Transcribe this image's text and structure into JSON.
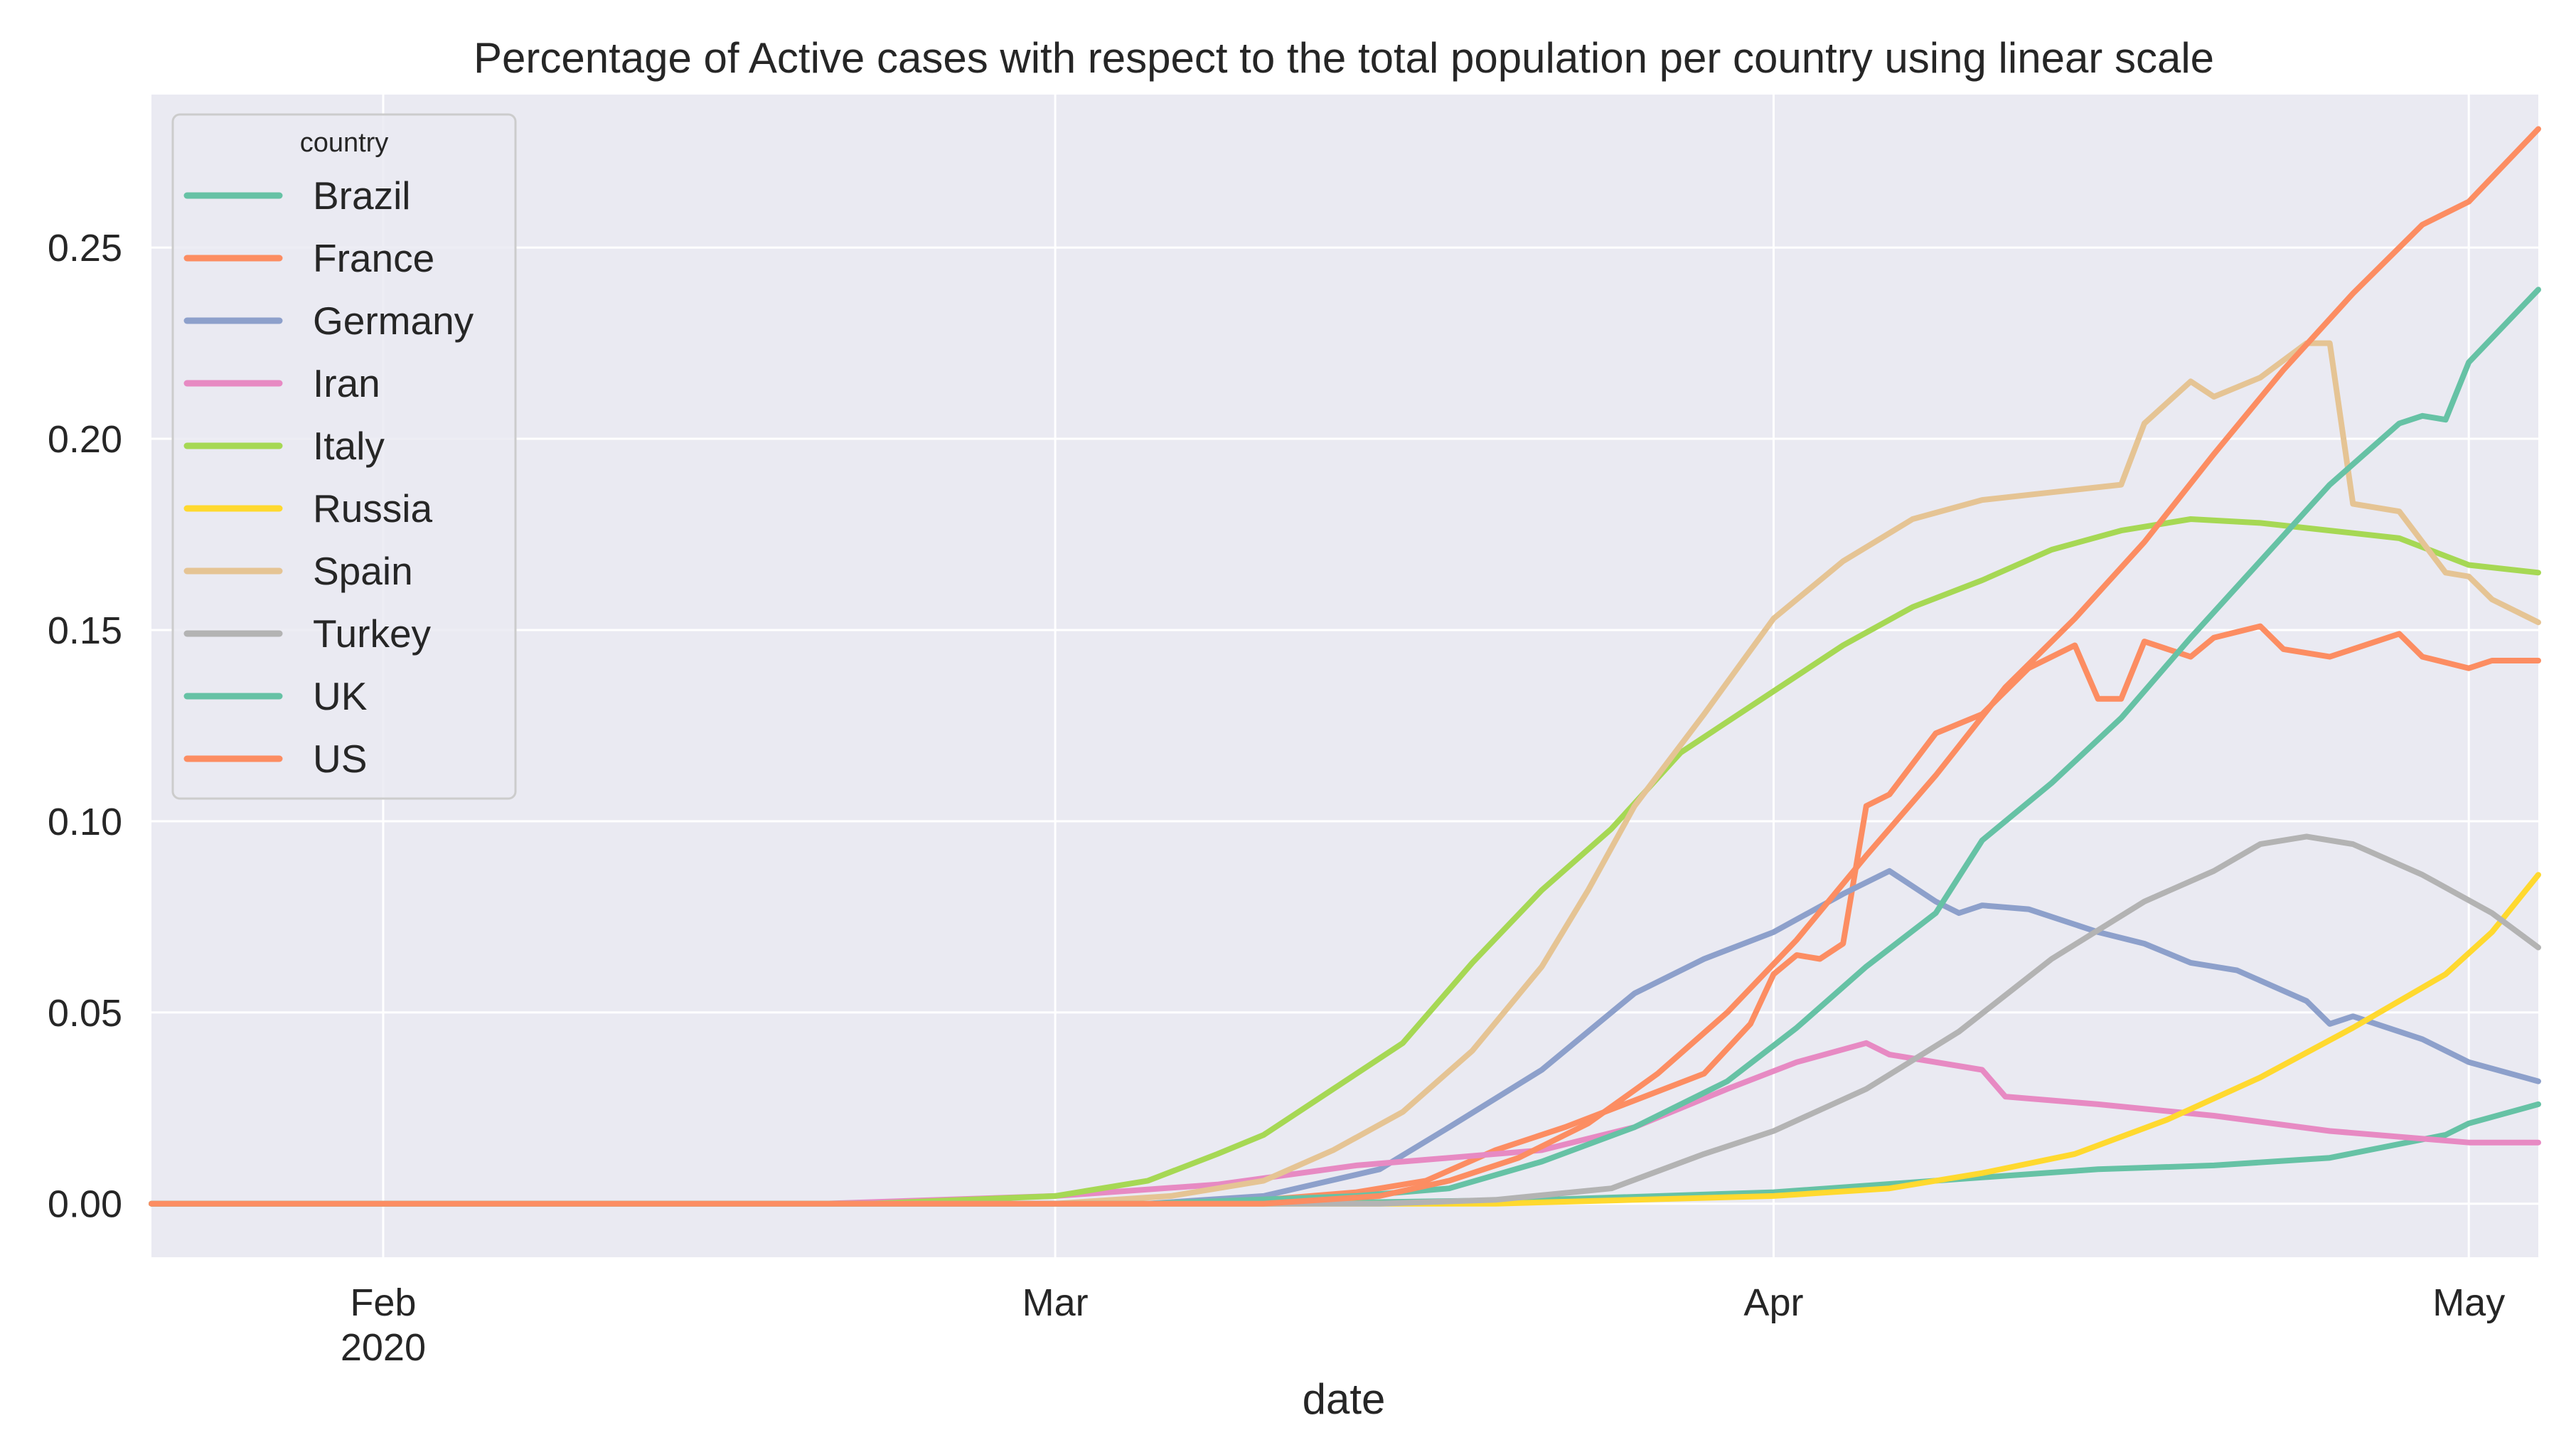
{
  "chart_data": {
    "type": "line",
    "title": "Percentage of Active cases with respect to the total population per country using linear scale",
    "xlabel": "date",
    "ylabel": "",
    "x_range": [
      "2020-01-22",
      "2020-05-04"
    ],
    "ylim": [
      -0.014,
      0.29
    ],
    "grid": true,
    "legend_position": "top-left",
    "legend_title": "country",
    "y_ticks": [
      {
        "value": 0.0,
        "label": "0.00"
      },
      {
        "value": 0.05,
        "label": "0.05"
      },
      {
        "value": 0.1,
        "label": "0.10"
      },
      {
        "value": 0.15,
        "label": "0.15"
      },
      {
        "value": 0.2,
        "label": "0.20"
      },
      {
        "value": 0.25,
        "label": "0.25"
      }
    ],
    "x_ticks": [
      {
        "date": "2020-02-01",
        "label": "Feb",
        "sublabel": "2020"
      },
      {
        "date": "2020-03-01",
        "label": "Mar",
        "sublabel": ""
      },
      {
        "date": "2020-04-01",
        "label": "Apr",
        "sublabel": ""
      },
      {
        "date": "2020-05-01",
        "label": "May",
        "sublabel": ""
      }
    ],
    "series": [
      {
        "name": "Brazil",
        "color": "#66c2a5",
        "points": [
          [
            "2020-01-22",
            0
          ],
          [
            "2020-03-10",
            0
          ],
          [
            "2020-03-22",
            0.001
          ],
          [
            "2020-04-01",
            0.003
          ],
          [
            "2020-04-08",
            0.006
          ],
          [
            "2020-04-15",
            0.009
          ],
          [
            "2020-04-20",
            0.01
          ],
          [
            "2020-04-25",
            0.012
          ],
          [
            "2020-04-30",
            0.018
          ],
          [
            "2020-05-01",
            0.021
          ],
          [
            "2020-05-04",
            0.026
          ]
        ]
      },
      {
        "name": "France",
        "color": "#fc8d62",
        "points": [
          [
            "2020-01-22",
            0
          ],
          [
            "2020-03-05",
            0
          ],
          [
            "2020-03-10",
            0.001
          ],
          [
            "2020-03-14",
            0.003
          ],
          [
            "2020-03-17",
            0.006
          ],
          [
            "2020-03-20",
            0.014
          ],
          [
            "2020-03-23",
            0.02
          ],
          [
            "2020-03-26",
            0.027
          ],
          [
            "2020-03-29",
            0.034
          ],
          [
            "2020-03-31",
            0.047
          ],
          [
            "2020-04-01",
            0.06
          ],
          [
            "2020-04-02",
            0.065
          ],
          [
            "2020-04-03",
            0.064
          ],
          [
            "2020-04-04",
            0.068
          ],
          [
            "2020-04-05",
            0.104
          ],
          [
            "2020-04-06",
            0.107
          ],
          [
            "2020-04-08",
            0.123
          ],
          [
            "2020-04-10",
            0.128
          ],
          [
            "2020-04-12",
            0.14
          ],
          [
            "2020-04-14",
            0.146
          ],
          [
            "2020-04-15",
            0.132
          ],
          [
            "2020-04-16",
            0.132
          ],
          [
            "2020-04-17",
            0.147
          ],
          [
            "2020-04-19",
            0.143
          ],
          [
            "2020-04-20",
            0.148
          ],
          [
            "2020-04-22",
            0.151
          ],
          [
            "2020-04-23",
            0.145
          ],
          [
            "2020-04-25",
            0.143
          ],
          [
            "2020-04-28",
            0.149
          ],
          [
            "2020-04-29",
            0.143
          ],
          [
            "2020-05-01",
            0.14
          ],
          [
            "2020-05-02",
            0.142
          ],
          [
            "2020-05-04",
            0.142
          ]
        ]
      },
      {
        "name": "Germany",
        "color": "#8da0cb",
        "points": [
          [
            "2020-01-22",
            0
          ],
          [
            "2020-03-05",
            0
          ],
          [
            "2020-03-10",
            0.002
          ],
          [
            "2020-03-15",
            0.009
          ],
          [
            "2020-03-18",
            0.02
          ],
          [
            "2020-03-22",
            0.035
          ],
          [
            "2020-03-26",
            0.055
          ],
          [
            "2020-03-29",
            0.064
          ],
          [
            "2020-04-01",
            0.071
          ],
          [
            "2020-04-04",
            0.081
          ],
          [
            "2020-04-06",
            0.087
          ],
          [
            "2020-04-08",
            0.079
          ],
          [
            "2020-04-09",
            0.076
          ],
          [
            "2020-04-10",
            0.078
          ],
          [
            "2020-04-12",
            0.077
          ],
          [
            "2020-04-15",
            0.071
          ],
          [
            "2020-04-17",
            0.068
          ],
          [
            "2020-04-19",
            0.063
          ],
          [
            "2020-04-21",
            0.061
          ],
          [
            "2020-04-24",
            0.053
          ],
          [
            "2020-04-25",
            0.047
          ],
          [
            "2020-04-26",
            0.049
          ],
          [
            "2020-04-29",
            0.043
          ],
          [
            "2020-05-01",
            0.037
          ],
          [
            "2020-05-04",
            0.032
          ]
        ]
      },
      {
        "name": "Iran",
        "color": "#e78ac3",
        "points": [
          [
            "2020-01-22",
            0
          ],
          [
            "2020-02-20",
            0
          ],
          [
            "2020-03-01",
            0.002
          ],
          [
            "2020-03-08",
            0.005
          ],
          [
            "2020-03-14",
            0.01
          ],
          [
            "2020-03-18",
            0.012
          ],
          [
            "2020-03-22",
            0.014
          ],
          [
            "2020-03-26",
            0.02
          ],
          [
            "2020-03-30",
            0.03
          ],
          [
            "2020-04-02",
            0.037
          ],
          [
            "2020-04-05",
            0.042
          ],
          [
            "2020-04-06",
            0.039
          ],
          [
            "2020-04-10",
            0.035
          ],
          [
            "2020-04-11",
            0.028
          ],
          [
            "2020-04-15",
            0.026
          ],
          [
            "2020-04-20",
            0.023
          ],
          [
            "2020-04-25",
            0.019
          ],
          [
            "2020-05-01",
            0.016
          ],
          [
            "2020-05-04",
            0.016
          ]
        ]
      },
      {
        "name": "Italy",
        "color": "#a6d854",
        "points": [
          [
            "2020-01-22",
            0
          ],
          [
            "2020-02-22",
            0
          ],
          [
            "2020-03-01",
            0.002
          ],
          [
            "2020-03-05",
            0.006
          ],
          [
            "2020-03-08",
            0.013
          ],
          [
            "2020-03-10",
            0.018
          ],
          [
            "2020-03-13",
            0.03
          ],
          [
            "2020-03-16",
            0.042
          ],
          [
            "2020-03-19",
            0.063
          ],
          [
            "2020-03-22",
            0.082
          ],
          [
            "2020-03-25",
            0.098
          ],
          [
            "2020-03-28",
            0.118
          ],
          [
            "2020-04-01",
            0.134
          ],
          [
            "2020-04-04",
            0.146
          ],
          [
            "2020-04-07",
            0.156
          ],
          [
            "2020-04-10",
            0.163
          ],
          [
            "2020-04-13",
            0.171
          ],
          [
            "2020-04-16",
            0.176
          ],
          [
            "2020-04-19",
            0.179
          ],
          [
            "2020-04-22",
            0.178
          ],
          [
            "2020-04-25",
            0.176
          ],
          [
            "2020-04-28",
            0.174
          ],
          [
            "2020-05-01",
            0.167
          ],
          [
            "2020-05-04",
            0.165
          ]
        ]
      },
      {
        "name": "Russia",
        "color": "#ffd92f",
        "points": [
          [
            "2020-01-22",
            0
          ],
          [
            "2020-03-20",
            0
          ],
          [
            "2020-04-01",
            0.002
          ],
          [
            "2020-04-06",
            0.004
          ],
          [
            "2020-04-10",
            0.008
          ],
          [
            "2020-04-14",
            0.013
          ],
          [
            "2020-04-18",
            0.022
          ],
          [
            "2020-04-22",
            0.033
          ],
          [
            "2020-04-26",
            0.046
          ],
          [
            "2020-04-30",
            0.06
          ],
          [
            "2020-05-02",
            0.071
          ],
          [
            "2020-05-04",
            0.086
          ]
        ]
      },
      {
        "name": "Spain",
        "color": "#e5c494",
        "points": [
          [
            "2020-01-22",
            0
          ],
          [
            "2020-03-01",
            0
          ],
          [
            "2020-03-06",
            0.002
          ],
          [
            "2020-03-10",
            0.006
          ],
          [
            "2020-03-13",
            0.014
          ],
          [
            "2020-03-16",
            0.024
          ],
          [
            "2020-03-19",
            0.04
          ],
          [
            "2020-03-22",
            0.062
          ],
          [
            "2020-03-24",
            0.082
          ],
          [
            "2020-03-26",
            0.104
          ],
          [
            "2020-03-29",
            0.128
          ],
          [
            "2020-04-01",
            0.153
          ],
          [
            "2020-04-04",
            0.168
          ],
          [
            "2020-04-07",
            0.179
          ],
          [
            "2020-04-10",
            0.184
          ],
          [
            "2020-04-13",
            0.186
          ],
          [
            "2020-04-16",
            0.188
          ],
          [
            "2020-04-17",
            0.204
          ],
          [
            "2020-04-19",
            0.215
          ],
          [
            "2020-04-20",
            0.211
          ],
          [
            "2020-04-22",
            0.216
          ],
          [
            "2020-04-24",
            0.225
          ],
          [
            "2020-04-25",
            0.225
          ],
          [
            "2020-04-26",
            0.183
          ],
          [
            "2020-04-28",
            0.181
          ],
          [
            "2020-04-30",
            0.165
          ],
          [
            "2020-05-01",
            0.164
          ],
          [
            "2020-05-02",
            0.158
          ],
          [
            "2020-05-04",
            0.152
          ]
        ]
      },
      {
        "name": "Turkey",
        "color": "#b3b3b3",
        "points": [
          [
            "2020-01-22",
            0
          ],
          [
            "2020-03-15",
            0
          ],
          [
            "2020-03-20",
            0.001
          ],
          [
            "2020-03-25",
            0.004
          ],
          [
            "2020-03-29",
            0.013
          ],
          [
            "2020-04-01",
            0.019
          ],
          [
            "2020-04-05",
            0.03
          ],
          [
            "2020-04-09",
            0.045
          ],
          [
            "2020-04-13",
            0.064
          ],
          [
            "2020-04-17",
            0.079
          ],
          [
            "2020-04-20",
            0.087
          ],
          [
            "2020-04-22",
            0.094
          ],
          [
            "2020-04-24",
            0.096
          ],
          [
            "2020-04-26",
            0.094
          ],
          [
            "2020-04-29",
            0.086
          ],
          [
            "2020-05-02",
            0.076
          ],
          [
            "2020-05-04",
            0.067
          ]
        ]
      },
      {
        "name": "UK",
        "color": "#66c2a5",
        "points": [
          [
            "2020-01-22",
            0
          ],
          [
            "2020-03-05",
            0
          ],
          [
            "2020-03-14",
            0.002
          ],
          [
            "2020-03-18",
            0.004
          ],
          [
            "2020-03-22",
            0.011
          ],
          [
            "2020-03-26",
            0.02
          ],
          [
            "2020-03-30",
            0.032
          ],
          [
            "2020-04-02",
            0.046
          ],
          [
            "2020-04-05",
            0.062
          ],
          [
            "2020-04-08",
            0.076
          ],
          [
            "2020-04-10",
            0.095
          ],
          [
            "2020-04-13",
            0.11
          ],
          [
            "2020-04-16",
            0.127
          ],
          [
            "2020-04-19",
            0.148
          ],
          [
            "2020-04-22",
            0.168
          ],
          [
            "2020-04-25",
            0.188
          ],
          [
            "2020-04-28",
            0.204
          ],
          [
            "2020-04-29",
            0.206
          ],
          [
            "2020-04-30",
            0.205
          ],
          [
            "2020-05-01",
            0.22
          ],
          [
            "2020-05-04",
            0.239
          ]
        ]
      },
      {
        "name": "US",
        "color": "#fc8d62",
        "points": [
          [
            "2020-01-22",
            0
          ],
          [
            "2020-03-10",
            0
          ],
          [
            "2020-03-15",
            0.002
          ],
          [
            "2020-03-18",
            0.006
          ],
          [
            "2020-03-21",
            0.012
          ],
          [
            "2020-03-24",
            0.021
          ],
          [
            "2020-03-27",
            0.034
          ],
          [
            "2020-03-30",
            0.05
          ],
          [
            "2020-04-02",
            0.069
          ],
          [
            "2020-04-05",
            0.091
          ],
          [
            "2020-04-08",
            0.112
          ],
          [
            "2020-04-11",
            0.135
          ],
          [
            "2020-04-14",
            0.153
          ],
          [
            "2020-04-17",
            0.173
          ],
          [
            "2020-04-20",
            0.196
          ],
          [
            "2020-04-23",
            0.218
          ],
          [
            "2020-04-26",
            0.238
          ],
          [
            "2020-04-29",
            0.256
          ],
          [
            "2020-05-01",
            0.262
          ],
          [
            "2020-05-04",
            0.281
          ]
        ]
      }
    ]
  }
}
